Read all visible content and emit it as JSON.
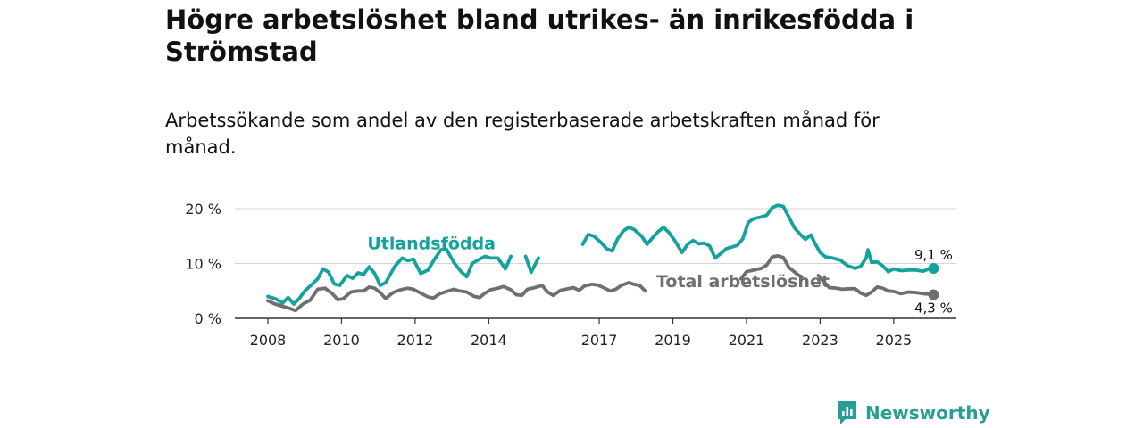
{
  "chart_data": {
    "type": "line",
    "title": "Högre arbetslöshet bland utrikes- än inrikesfödda i Strömstad",
    "subtitle": "Arbetssökande som andel av den registerbaserade arbetskraften månad för månad.",
    "xlabel": "",
    "ylabel": "",
    "ylim": [
      0,
      22
    ],
    "xlim": [
      2007.75,
      2026.4
    ],
    "grid": true,
    "y_ticks": [
      {
        "value": 0,
        "label": "0 %"
      },
      {
        "value": 10,
        "label": "10 %"
      },
      {
        "value": 20,
        "label": "20 %"
      }
    ],
    "x_ticks": [
      {
        "value": 2008,
        "label": "2008"
      },
      {
        "value": 2010,
        "label": "2010"
      },
      {
        "value": 2012,
        "label": "2012"
      },
      {
        "value": 2014,
        "label": "2014"
      },
      {
        "value": 2017,
        "label": "2017"
      },
      {
        "value": 2019,
        "label": "2019"
      },
      {
        "value": 2021,
        "label": "2021"
      },
      {
        "value": 2023,
        "label": "2023"
      },
      {
        "value": 2025,
        "label": "2025"
      }
    ],
    "series": [
      {
        "name": "Utlandsfödda",
        "color": "#14a39a",
        "label_position": [
          2010.7,
          12.6
        ],
        "end_label": "9,1 %",
        "end_value": 9.1,
        "segments": [
          [
            [
              2008.0,
              4.0
            ],
            [
              2008.2,
              3.6
            ],
            [
              2008.4,
              2.8
            ],
            [
              2008.55,
              3.8
            ],
            [
              2008.7,
              2.6
            ],
            [
              2008.85,
              3.6
            ],
            [
              2009.0,
              5.0
            ],
            [
              2009.2,
              6.2
            ],
            [
              2009.35,
              7.2
            ],
            [
              2009.5,
              9.0
            ],
            [
              2009.65,
              8.4
            ],
            [
              2009.8,
              6.3
            ],
            [
              2009.95,
              6.0
            ],
            [
              2010.15,
              7.8
            ],
            [
              2010.3,
              7.3
            ],
            [
              2010.45,
              8.3
            ],
            [
              2010.6,
              8.0
            ],
            [
              2010.75,
              9.4
            ],
            [
              2010.9,
              8.2
            ],
            [
              2011.05,
              6.0
            ],
            [
              2011.2,
              6.5
            ],
            [
              2011.45,
              9.5
            ],
            [
              2011.65,
              11.0
            ],
            [
              2011.8,
              10.5
            ],
            [
              2011.95,
              10.8
            ],
            [
              2012.15,
              8.2
            ],
            [
              2012.35,
              8.8
            ],
            [
              2012.5,
              10.5
            ],
            [
              2012.7,
              12.5
            ],
            [
              2012.85,
              12.6
            ],
            [
              2013.05,
              10.2
            ],
            [
              2013.25,
              8.5
            ],
            [
              2013.4,
              7.6
            ],
            [
              2013.55,
              10.0
            ],
            [
              2013.75,
              10.8
            ],
            [
              2013.9,
              11.3
            ],
            [
              2014.05,
              11.0
            ],
            [
              2014.25,
              11.0
            ],
            [
              2014.45,
              9.0
            ],
            [
              2014.6,
              11.3
            ]
          ],
          [
            [
              2015.0,
              11.3
            ],
            [
              2015.15,
              8.4
            ],
            [
              2015.35,
              11.0
            ]
          ],
          [
            [
              2016.55,
              13.5
            ],
            [
              2016.7,
              15.3
            ],
            [
              2016.85,
              15.0
            ],
            [
              2017.05,
              13.8
            ],
            [
              2017.2,
              12.7
            ],
            [
              2017.35,
              12.3
            ],
            [
              2017.5,
              14.5
            ],
            [
              2017.65,
              15.9
            ],
            [
              2017.8,
              16.6
            ],
            [
              2017.95,
              16.2
            ],
            [
              2018.15,
              15.0
            ],
            [
              2018.3,
              13.5
            ],
            [
              2018.45,
              14.7
            ],
            [
              2018.6,
              15.8
            ],
            [
              2018.75,
              16.6
            ],
            [
              2018.9,
              15.6
            ],
            [
              2019.05,
              14.2
            ],
            [
              2019.25,
              12.0
            ],
            [
              2019.4,
              13.5
            ],
            [
              2019.55,
              14.2
            ],
            [
              2019.7,
              13.6
            ],
            [
              2019.85,
              13.7
            ],
            [
              2020.0,
              13.2
            ],
            [
              2020.15,
              11.0
            ],
            [
              2020.3,
              11.8
            ],
            [
              2020.45,
              12.7
            ],
            [
              2020.6,
              13.0
            ],
            [
              2020.75,
              13.3
            ],
            [
              2020.9,
              14.5
            ],
            [
              2021.05,
              17.5
            ],
            [
              2021.2,
              18.2
            ],
            [
              2021.35,
              18.4
            ],
            [
              2021.55,
              18.8
            ],
            [
              2021.7,
              20.2
            ],
            [
              2021.85,
              20.6
            ],
            [
              2022.0,
              20.4
            ],
            [
              2022.15,
              18.5
            ],
            [
              2022.3,
              16.5
            ],
            [
              2022.45,
              15.4
            ],
            [
              2022.6,
              14.4
            ],
            [
              2022.75,
              15.2
            ],
            [
              2022.85,
              13.8
            ],
            [
              2023.0,
              12.0
            ],
            [
              2023.15,
              11.2
            ],
            [
              2023.35,
              11.0
            ],
            [
              2023.55,
              10.6
            ],
            [
              2023.75,
              9.6
            ],
            [
              2023.95,
              9.1
            ],
            [
              2024.1,
              9.5
            ],
            [
              2024.25,
              11.0
            ],
            [
              2024.3,
              12.5
            ],
            [
              2024.4,
              10.2
            ],
            [
              2024.55,
              10.3
            ],
            [
              2024.7,
              9.6
            ],
            [
              2024.85,
              8.5
            ],
            [
              2025.0,
              9.0
            ],
            [
              2025.2,
              8.7
            ],
            [
              2025.4,
              8.8
            ],
            [
              2025.6,
              8.8
            ],
            [
              2025.8,
              8.6
            ],
            [
              2025.95,
              9.0
            ],
            [
              2026.08,
              9.1
            ]
          ]
        ]
      },
      {
        "name": "Total arbetslöshet",
        "color": "#6e6e73",
        "label_position": [
          2018.55,
          5.7
        ],
        "end_label": "4,3 %",
        "end_value": 4.3,
        "segments": [
          [
            [
              2008.0,
              3.2
            ],
            [
              2008.2,
              2.6
            ],
            [
              2008.4,
              2.2
            ],
            [
              2008.6,
              1.8
            ],
            [
              2008.75,
              1.4
            ],
            [
              2008.95,
              2.6
            ],
            [
              2009.15,
              3.3
            ],
            [
              2009.35,
              5.3
            ],
            [
              2009.55,
              5.5
            ],
            [
              2009.75,
              4.5
            ],
            [
              2009.9,
              3.4
            ],
            [
              2010.05,
              3.6
            ],
            [
              2010.25,
              4.8
            ],
            [
              2010.45,
              5.0
            ],
            [
              2010.6,
              5.0
            ],
            [
              2010.75,
              5.7
            ],
            [
              2010.9,
              5.5
            ],
            [
              2011.05,
              4.7
            ],
            [
              2011.2,
              3.6
            ],
            [
              2011.4,
              4.7
            ],
            [
              2011.6,
              5.2
            ],
            [
              2011.8,
              5.5
            ],
            [
              2011.95,
              5.3
            ],
            [
              2012.15,
              4.6
            ],
            [
              2012.35,
              3.9
            ],
            [
              2012.5,
              3.7
            ],
            [
              2012.65,
              4.4
            ],
            [
              2012.85,
              4.9
            ],
            [
              2013.05,
              5.3
            ],
            [
              2013.2,
              5.0
            ],
            [
              2013.4,
              4.8
            ],
            [
              2013.6,
              4.0
            ],
            [
              2013.75,
              3.8
            ],
            [
              2013.9,
              4.6
            ],
            [
              2014.05,
              5.2
            ],
            [
              2014.25,
              5.5
            ],
            [
              2014.4,
              5.8
            ],
            [
              2014.6,
              5.2
            ],
            [
              2014.75,
              4.3
            ],
            [
              2014.9,
              4.2
            ],
            [
              2015.05,
              5.3
            ],
            [
              2015.25,
              5.6
            ],
            [
              2015.45,
              6.0
            ],
            [
              2015.6,
              4.8
            ],
            [
              2015.75,
              4.2
            ],
            [
              2015.95,
              5.1
            ],
            [
              2016.15,
              5.4
            ],
            [
              2016.3,
              5.6
            ],
            [
              2016.45,
              5.1
            ],
            [
              2016.6,
              5.9
            ],
            [
              2016.8,
              6.2
            ],
            [
              2016.95,
              6.1
            ],
            [
              2017.15,
              5.5
            ],
            [
              2017.3,
              5.0
            ],
            [
              2017.45,
              5.3
            ],
            [
              2017.6,
              6.0
            ],
            [
              2017.8,
              6.5
            ],
            [
              2017.95,
              6.2
            ],
            [
              2018.1,
              6.0
            ],
            [
              2018.25,
              5.0
            ]
          ],
          [
            [
              2020.85,
              7.2
            ],
            [
              2021.0,
              8.5
            ],
            [
              2021.2,
              8.8
            ],
            [
              2021.4,
              9.1
            ],
            [
              2021.55,
              9.7
            ],
            [
              2021.7,
              11.2
            ],
            [
              2021.85,
              11.4
            ],
            [
              2022.0,
              11.1
            ],
            [
              2022.15,
              9.3
            ],
            [
              2022.35,
              8.2
            ],
            [
              2022.5,
              7.5
            ]
          ],
          [
            [
              2022.95,
              7.8
            ],
            [
              2023.1,
              6.7
            ],
            [
              2023.25,
              5.6
            ],
            [
              2023.45,
              5.5
            ],
            [
              2023.6,
              5.3
            ],
            [
              2023.8,
              5.4
            ],
            [
              2023.95,
              5.4
            ],
            [
              2024.1,
              4.6
            ],
            [
              2024.25,
              4.2
            ],
            [
              2024.4,
              4.8
            ],
            [
              2024.55,
              5.7
            ],
            [
              2024.7,
              5.5
            ],
            [
              2024.85,
              5.0
            ],
            [
              2025.0,
              4.9
            ],
            [
              2025.2,
              4.5
            ],
            [
              2025.4,
              4.8
            ],
            [
              2025.6,
              4.7
            ],
            [
              2025.8,
              4.5
            ],
            [
              2025.95,
              4.4
            ],
            [
              2026.08,
              4.3
            ]
          ]
        ]
      }
    ]
  },
  "brand": {
    "name": "Newsworthy",
    "color": "#2a9d96"
  }
}
